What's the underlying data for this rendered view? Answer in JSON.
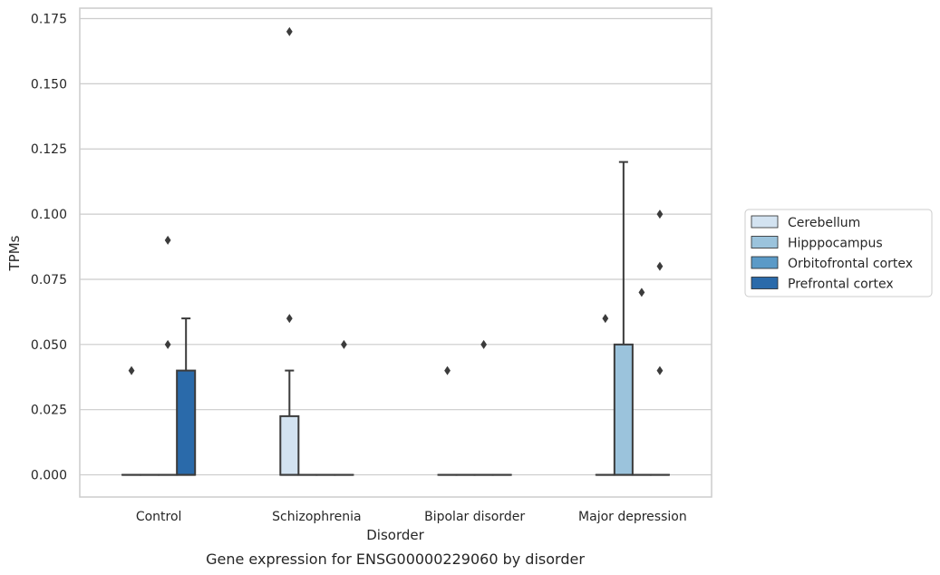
{
  "chart_data": {
    "type": "box",
    "caption": "Gene expression for ENSG00000229060 by disorder",
    "xlabel": "Disorder",
    "ylabel": "TPMs",
    "categories": [
      "Control",
      "Schizophrenia",
      "Bipolar disorder",
      "Major depression"
    ],
    "ylim": [
      -0.0085,
      0.179
    ],
    "yticks": [
      "0.000",
      "0.025",
      "0.050",
      "0.075",
      "0.100",
      "0.125",
      "0.150",
      "0.175"
    ],
    "grid": "horizontal",
    "legend_position": "right",
    "series": [
      {
        "name": "Cerebellum",
        "color": "#d3e3f1",
        "boxes": [
          {
            "q1": 0,
            "median": 0,
            "q3": 0,
            "whislo": 0,
            "whishi": 0,
            "fliers": [
              0.04
            ]
          },
          {
            "q1": 0,
            "median": 0,
            "q3": 0.0225,
            "whislo": 0,
            "whishi": 0.04,
            "fliers": [
              0.06,
              0.17
            ]
          },
          {
            "q1": 0,
            "median": 0,
            "q3": 0,
            "whislo": 0,
            "whishi": 0,
            "fliers": [
              0.04
            ]
          },
          {
            "q1": 0,
            "median": 0,
            "q3": 0,
            "whislo": 0,
            "whishi": 0,
            "fliers": [
              0.06
            ]
          }
        ]
      },
      {
        "name": "Hipppocampus",
        "color": "#9bc3dc",
        "boxes": [
          {
            "q1": 0,
            "median": 0,
            "q3": 0,
            "whislo": 0,
            "whishi": 0,
            "fliers": []
          },
          {
            "q1": 0,
            "median": 0,
            "q3": 0,
            "whislo": 0,
            "whishi": 0,
            "fliers": []
          },
          {
            "q1": 0,
            "median": 0,
            "q3": 0,
            "whislo": 0,
            "whishi": 0,
            "fliers": []
          },
          {
            "q1": 0,
            "median": 0,
            "q3": 0.05,
            "whislo": 0,
            "whishi": 0.12,
            "fliers": []
          }
        ]
      },
      {
        "name": "Orbitofrontal cortex",
        "color": "#5b9ac7",
        "boxes": [
          {
            "q1": 0,
            "median": 0,
            "q3": 0,
            "whislo": 0,
            "whishi": 0,
            "fliers": [
              0.05,
              0.09
            ]
          },
          {
            "q1": 0,
            "median": 0,
            "q3": 0,
            "whislo": 0,
            "whishi": 0,
            "fliers": []
          },
          {
            "q1": 0,
            "median": 0,
            "q3": 0,
            "whislo": 0,
            "whishi": 0,
            "fliers": [
              0.05
            ]
          },
          {
            "q1": 0,
            "median": 0,
            "q3": 0,
            "whislo": 0,
            "whishi": 0,
            "fliers": [
              0.07
            ]
          }
        ]
      },
      {
        "name": "Prefrontal cortex",
        "color": "#2a6aaa",
        "boxes": [
          {
            "q1": 0,
            "median": 0,
            "q3": 0.04,
            "whislo": 0,
            "whishi": 0.06,
            "fliers": []
          },
          {
            "q1": 0,
            "median": 0,
            "q3": 0,
            "whislo": 0,
            "whishi": 0,
            "fliers": [
              0.05
            ]
          },
          {
            "q1": 0,
            "median": 0,
            "q3": 0,
            "whislo": 0,
            "whishi": 0,
            "fliers": []
          },
          {
            "q1": 0,
            "median": 0,
            "q3": 0,
            "whislo": 0,
            "whishi": 0,
            "fliers": [
              0.04,
              0.08,
              0.1
            ]
          }
        ]
      }
    ]
  }
}
